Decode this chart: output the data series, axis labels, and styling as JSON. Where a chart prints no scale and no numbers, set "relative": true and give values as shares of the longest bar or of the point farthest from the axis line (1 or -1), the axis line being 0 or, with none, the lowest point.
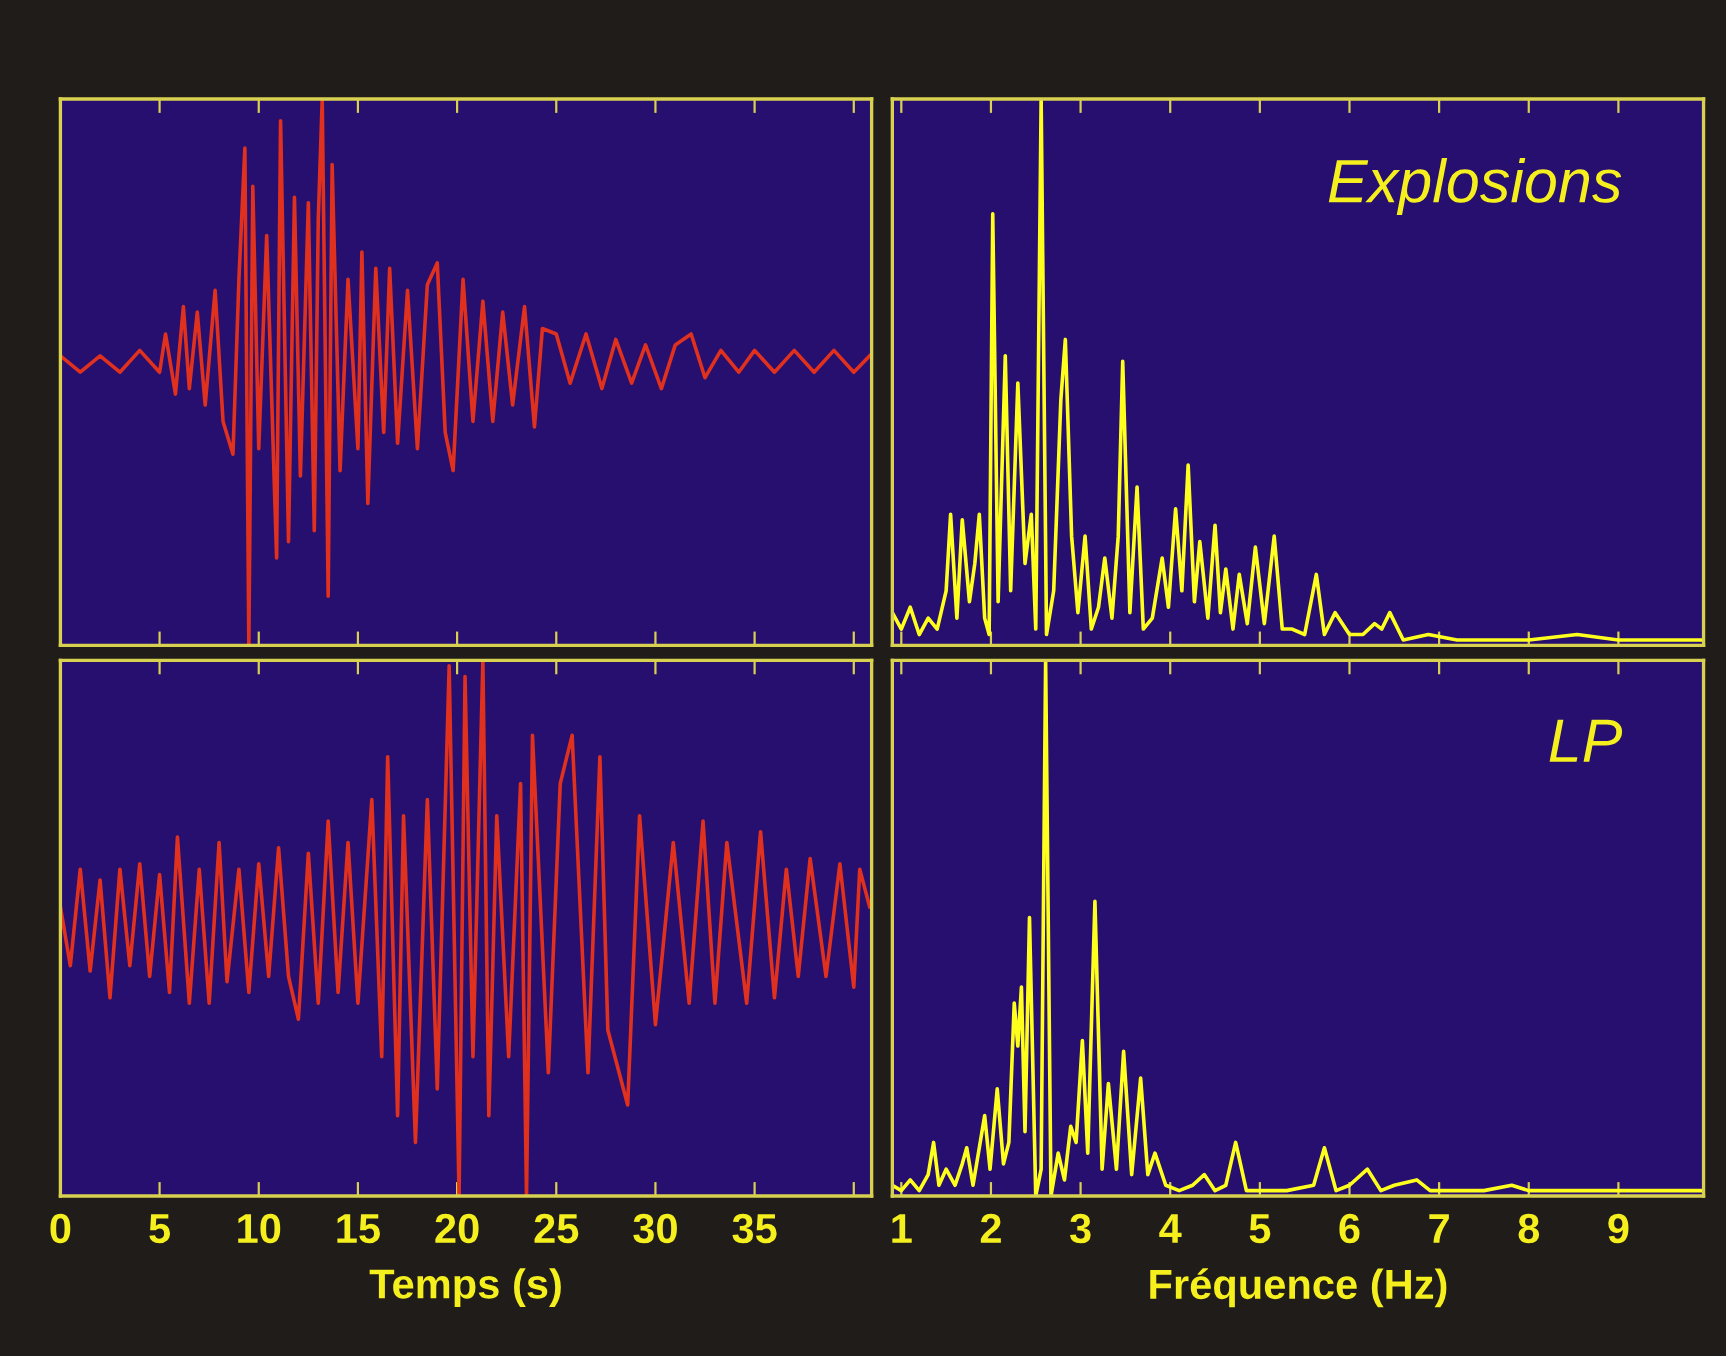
{
  "chart_data": [
    {
      "type": "line",
      "relative": true,
      "color": "#e0301e",
      "xlim": [
        0,
        40.9
      ],
      "xticks": [
        0,
        5,
        10,
        15,
        20,
        25,
        30,
        35,
        40
      ],
      "tick_labels": false,
      "x": [
        0,
        1,
        2,
        3,
        4,
        5,
        5.3,
        5.8,
        6.2,
        6.5,
        6.9,
        7.3,
        7.8,
        8.2,
        8.7,
        9.0,
        9.3,
        9.5,
        9.7,
        10.0,
        10.4,
        10.9,
        11.1,
        11.5,
        11.8,
        12.1,
        12.5,
        12.8,
        13.0,
        13.2,
        13.5,
        13.7,
        14.1,
        14.5,
        15.0,
        15.2,
        15.5,
        15.9,
        16.3,
        16.6,
        17.0,
        17.5,
        18.0,
        18.5,
        19.0,
        19.4,
        19.8,
        20.3,
        20.8,
        21.3,
        21.8,
        22.3,
        22.8,
        23.4,
        23.9,
        24.3,
        25.0,
        25.7,
        26.5,
        27.3,
        28.0,
        28.8,
        29.5,
        30.3,
        31.0,
        31.8,
        32.5,
        33.3,
        34.2,
        35.0,
        36.0,
        37.0,
        38.0,
        39.0,
        40.0,
        40.8
      ],
      "values": [
        0.53,
        0.5,
        0.53,
        0.5,
        0.54,
        0.5,
        0.57,
        0.46,
        0.62,
        0.47,
        0.61,
        0.44,
        0.65,
        0.41,
        0.35,
        0.67,
        0.91,
        0,
        0.84,
        0.36,
        0.75,
        0.16,
        0.96,
        0.19,
        0.82,
        0.31,
        0.81,
        0.21,
        0.78,
        1,
        0.09,
        0.88,
        0.32,
        0.67,
        0.36,
        0.72,
        0.26,
        0.69,
        0.39,
        0.69,
        0.37,
        0.65,
        0.36,
        0.66,
        0.7,
        0.39,
        0.32,
        0.67,
        0.41,
        0.63,
        0.41,
        0.61,
        0.44,
        0.62,
        0.4,
        0.58,
        0.57,
        0.48,
        0.57,
        0.47,
        0.56,
        0.48,
        0.55,
        0.47,
        0.55,
        0.57,
        0.49,
        0.54,
        0.5,
        0.54,
        0.5,
        0.54,
        0.5,
        0.54,
        0.5,
        0.53
      ]
    },
    {
      "type": "line",
      "relative": true,
      "color": "#ffff1e",
      "xlim": [
        0.9,
        9.95
      ],
      "xticks": [
        1,
        2,
        3,
        4,
        5,
        6,
        7,
        8,
        9
      ],
      "tick_labels": false,
      "annotations": [
        "Explosions"
      ],
      "x": [
        0.9,
        1.0,
        1.1,
        1.2,
        1.3,
        1.4,
        1.5,
        1.55,
        1.62,
        1.68,
        1.76,
        1.82,
        1.87,
        1.93,
        1.98,
        2.02,
        2.08,
        2.16,
        2.22,
        2.3,
        2.38,
        2.45,
        2.5,
        2.56,
        2.62,
        2.7,
        2.78,
        2.83,
        2.9,
        2.97,
        3.05,
        3.12,
        3.2,
        3.27,
        3.35,
        3.42,
        3.47,
        3.55,
        3.63,
        3.7,
        3.8,
        3.91,
        3.98,
        4.06,
        4.13,
        4.2,
        4.27,
        4.33,
        4.42,
        4.5,
        4.56,
        4.62,
        4.7,
        4.77,
        4.86,
        4.95,
        5.05,
        5.16,
        5.25,
        5.36,
        5.5,
        5.63,
        5.72,
        5.84,
        6.0,
        6.15,
        6.28,
        6.36,
        6.45,
        6.6,
        6.88,
        7.2,
        7.6,
        8.0,
        8.54,
        9.0,
        9.5,
        9.95
      ],
      "values": [
        0.06,
        0.03,
        0.07,
        0.02,
        0.05,
        0.03,
        0.1,
        0.24,
        0.05,
        0.23,
        0.08,
        0.15,
        0.24,
        0.05,
        0.02,
        0.79,
        0.08,
        0.53,
        0.1,
        0.48,
        0.15,
        0.24,
        0.03,
        1.0,
        0.02,
        0.1,
        0.45,
        0.56,
        0.2,
        0.06,
        0.2,
        0.03,
        0.07,
        0.16,
        0.05,
        0.2,
        0.52,
        0.06,
        0.29,
        0.03,
        0.05,
        0.16,
        0.07,
        0.25,
        0.1,
        0.33,
        0.08,
        0.19,
        0.05,
        0.22,
        0.06,
        0.14,
        0.03,
        0.13,
        0.04,
        0.18,
        0.04,
        0.2,
        0.03,
        0.03,
        0.02,
        0.13,
        0.02,
        0.06,
        0.02,
        0.02,
        0.04,
        0.03,
        0.06,
        0.01,
        0.02,
        0.01,
        0.01,
        0.01,
        0.02,
        0.01,
        0.01,
        0.01
      ]
    },
    {
      "type": "line",
      "relative": true,
      "color": "#e0301e",
      "xlim": [
        0,
        40.9
      ],
      "xticks": [
        0,
        5,
        10,
        15,
        20,
        25,
        30,
        35,
        {
          "value": 40,
          "label": null
        }
      ],
      "tick_labels": "x",
      "xlabel": "Temps (s)",
      "x": [
        0,
        0.5,
        1,
        1.5,
        2,
        2.5,
        3,
        3.5,
        4,
        4.5,
        5,
        5.5,
        5.9,
        6.5,
        7,
        7.5,
        8,
        8.4,
        9,
        9.5,
        10,
        10.5,
        11,
        11.5,
        12,
        12.5,
        13,
        13.5,
        14,
        14.5,
        15,
        15.7,
        16.2,
        16.5,
        17.0,
        17.3,
        17.9,
        18.5,
        19.0,
        19.6,
        20.1,
        20.4,
        20.8,
        21.3,
        21.6,
        22.0,
        22.6,
        23.2,
        23.5,
        23.8,
        24.6,
        25.2,
        25.8,
        26.6,
        27.2,
        27.6,
        28.6,
        29.2,
        30.0,
        30.9,
        31.7,
        32.4,
        33.0,
        33.6,
        34.6,
        35.3,
        36.0,
        36.6,
        37.2,
        37.8,
        38.6,
        39.3,
        40.0,
        40.3,
        40.8
      ],
      "values": [
        0.54,
        0.43,
        0.61,
        0.42,
        0.59,
        0.37,
        0.61,
        0.43,
        0.62,
        0.41,
        0.6,
        0.38,
        0.67,
        0.36,
        0.61,
        0.36,
        0.66,
        0.4,
        0.61,
        0.38,
        0.62,
        0.41,
        0.65,
        0.41,
        0.33,
        0.64,
        0.36,
        0.7,
        0.38,
        0.66,
        0.36,
        0.74,
        0.26,
        0.82,
        0.15,
        0.71,
        0.1,
        0.74,
        0.2,
        0.99,
        0,
        0.97,
        0.26,
        1,
        0.15,
        0.71,
        0.26,
        0.77,
        0,
        0.86,
        0.23,
        0.77,
        0.86,
        0.23,
        0.82,
        0.31,
        0.17,
        0.71,
        0.32,
        0.66,
        0.36,
        0.7,
        0.36,
        0.66,
        0.36,
        0.68,
        0.37,
        0.61,
        0.41,
        0.63,
        0.41,
        0.62,
        0.39,
        0.61,
        0.54
      ]
    },
    {
      "type": "line",
      "relative": true,
      "color": "#ffff1e",
      "xlim": [
        0.9,
        9.95
      ],
      "xticks": [
        1,
        2,
        3,
        4,
        5,
        6,
        7,
        8,
        9
      ],
      "tick_labels": "x",
      "xlabel": "Fréquence (Hz)",
      "annotations": [
        "LP"
      ],
      "x": [
        0.9,
        1.0,
        1.1,
        1.2,
        1.3,
        1.36,
        1.42,
        1.5,
        1.6,
        1.68,
        1.73,
        1.8,
        1.88,
        1.93,
        1.99,
        2.07,
        2.14,
        2.2,
        2.26,
        2.3,
        2.34,
        2.38,
        2.43,
        2.5,
        2.56,
        2.61,
        2.67,
        2.75,
        2.82,
        2.89,
        2.95,
        3.02,
        3.08,
        3.16,
        3.24,
        3.31,
        3.4,
        3.48,
        3.57,
        3.67,
        3.75,
        3.83,
        3.95,
        4.1,
        4.25,
        4.38,
        4.5,
        4.62,
        4.73,
        4.85,
        5.0,
        5.3,
        5.6,
        5.72,
        5.85,
        6.0,
        6.2,
        6.35,
        6.5,
        6.75,
        6.9,
        7.2,
        7.5,
        7.81,
        8.0,
        8.5,
        9.0,
        9.5,
        9.95
      ],
      "values": [
        0.02,
        0.01,
        0.03,
        0.01,
        0.04,
        0.1,
        0.02,
        0.05,
        0.02,
        0.06,
        0.09,
        0.02,
        0.1,
        0.15,
        0.05,
        0.2,
        0.06,
        0.1,
        0.36,
        0.28,
        0.39,
        0.12,
        0.52,
        0.0,
        0.05,
        1.0,
        0.0,
        0.08,
        0.03,
        0.13,
        0.1,
        0.29,
        0.08,
        0.55,
        0.05,
        0.21,
        0.05,
        0.27,
        0.04,
        0.22,
        0.04,
        0.08,
        0.02,
        0.01,
        0.02,
        0.04,
        0.01,
        0.02,
        0.1,
        0.01,
        0.01,
        0.01,
        0.02,
        0.09,
        0.01,
        0.02,
        0.05,
        0.01,
        0.02,
        0.03,
        0.01,
        0.01,
        0.01,
        0.02,
        0.01,
        0.01,
        0.01,
        0.01,
        0.01
      ]
    }
  ]
}
